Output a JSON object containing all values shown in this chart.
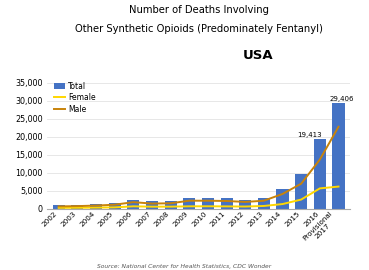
{
  "title_line1": "Number of Deaths Involving",
  "title_line2": "Other Synthetic Opioids (Predominately Fentanyl)",
  "subtitle": "USA",
  "source": "Source: National Center for Health Statistics, CDC Wonder",
  "years": [
    "2002",
    "2003",
    "2004",
    "2005",
    "2006",
    "2007",
    "2008",
    "2009",
    "2010",
    "2011",
    "2012",
    "2013",
    "2014",
    "2015",
    "2016",
    "Provisional\n2017"
  ],
  "total": [
    1000,
    1100,
    1300,
    1600,
    2600,
    2100,
    2200,
    3000,
    3000,
    2900,
    2600,
    3100,
    5500,
    9600,
    19413,
    29406
  ],
  "female": [
    300,
    320,
    370,
    430,
    720,
    620,
    630,
    720,
    730,
    700,
    660,
    820,
    1350,
    2600,
    5700,
    6200
  ],
  "male": [
    700,
    780,
    930,
    1170,
    1880,
    1480,
    1570,
    2280,
    2270,
    2200,
    1940,
    2280,
    4150,
    7000,
    13700,
    22800
  ],
  "bar_color": "#4472C4",
  "female_color": "#FFD700",
  "male_color": "#C8830A",
  "label_2016": "19,413",
  "label_2017": "29,406",
  "ylim": [
    0,
    37000
  ],
  "yticks": [
    0,
    5000,
    10000,
    15000,
    20000,
    25000,
    30000,
    35000
  ],
  "bg_color": "#FFFFFF"
}
